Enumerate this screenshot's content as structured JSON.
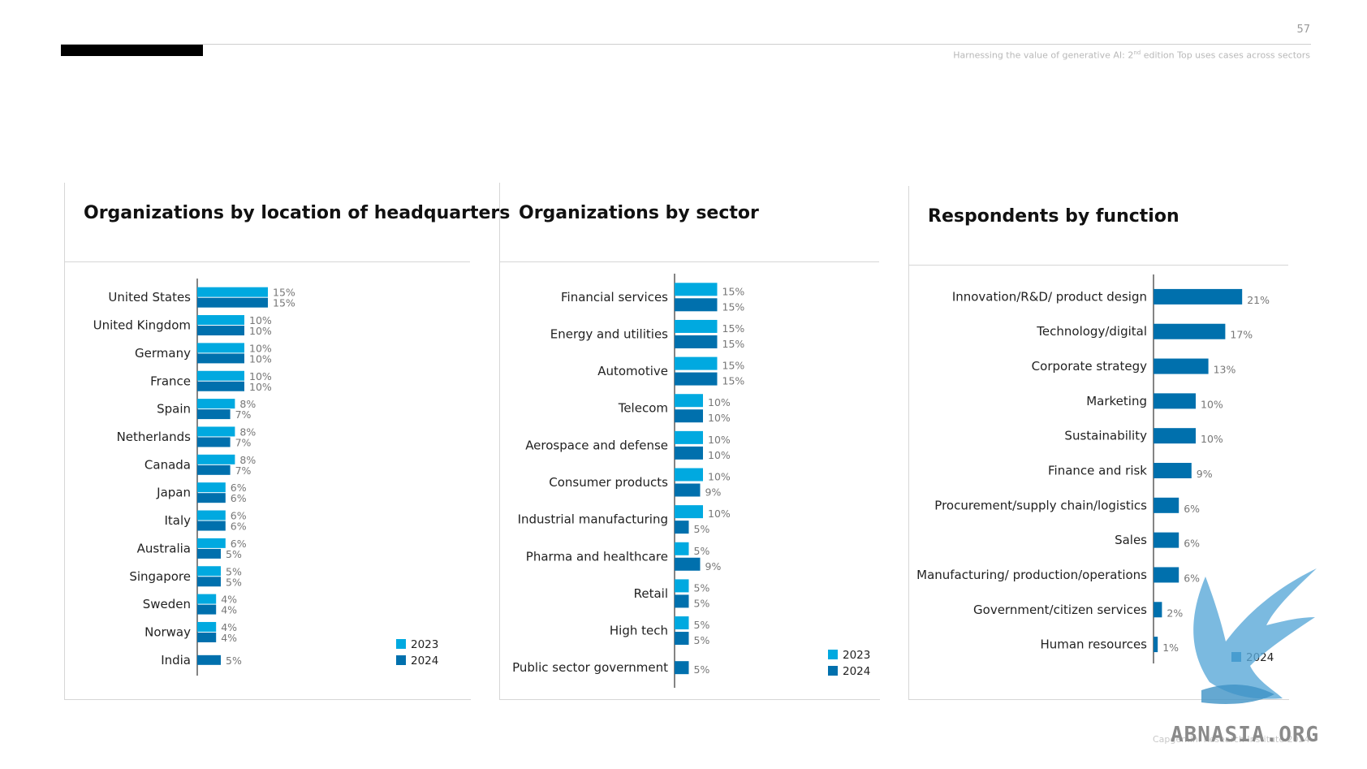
{
  "page": {
    "number": "57",
    "subtitle_pre": "Harnessing the value of generative AI: 2",
    "subtitle_sup": "nd",
    "subtitle_post": " edition Top uses cases across sectors",
    "footer": "Capgemini Research Institute 2024",
    "watermark": "ABNASIA.ORG"
  },
  "colors": {
    "y2023": "#00a9e0",
    "y2024": "#0070ad"
  },
  "chart_data": [
    {
      "type": "bar",
      "title": "Organizations by location of headquarters",
      "orientation": "horizontal",
      "categories": [
        "United States",
        "United Kingdom",
        "Germany",
        "France",
        "Spain",
        "Netherlands",
        "Canada",
        "Japan",
        "Italy",
        "Australia",
        "Singapore",
        "Sweden",
        "Norway",
        "India"
      ],
      "series": [
        {
          "name": "2023",
          "values": [
            15,
            10,
            10,
            10,
            8,
            8,
            8,
            6,
            6,
            6,
            5,
            4,
            4,
            null
          ]
        },
        {
          "name": "2024",
          "values": [
            15,
            10,
            10,
            10,
            7,
            7,
            7,
            6,
            6,
            5,
            5,
            4,
            4,
            5
          ]
        }
      ],
      "value_suffix": "%",
      "legend": [
        "2023",
        "2024"
      ],
      "legend_position": "bottom-right"
    },
    {
      "type": "bar",
      "title": "Organizations by sector",
      "orientation": "horizontal",
      "categories": [
        "Financial services",
        "Energy and utilities",
        "Automotive",
        "Telecom",
        "Aerospace and defense",
        "Consumer products",
        "Industrial manufacturing",
        "Pharma and healthcare",
        "Retail",
        "High tech",
        "Public sector government"
      ],
      "series": [
        {
          "name": "2023",
          "values": [
            15,
            15,
            15,
            10,
            10,
            10,
            10,
            5,
            5,
            5,
            null
          ]
        },
        {
          "name": "2024",
          "values": [
            15,
            15,
            15,
            10,
            10,
            9,
            5,
            9,
            5,
            5,
            5
          ]
        }
      ],
      "value_suffix": "%",
      "legend": [
        "2023",
        "2024"
      ],
      "legend_position": "bottom-right"
    },
    {
      "type": "bar",
      "title": "Respondents by function",
      "orientation": "horizontal",
      "categories": [
        "Innovation/R&D/ product design",
        "Technology/digital",
        "Corporate strategy",
        "Marketing",
        "Sustainability",
        "Finance and risk",
        "Procurement/supply chain/logistics",
        "Sales",
        "Manufacturing/ production/operations",
        "Government/citizen services",
        "Human resources"
      ],
      "series": [
        {
          "name": "2024",
          "values": [
            21,
            17,
            13,
            10,
            10,
            9,
            6,
            6,
            6,
            2,
            1
          ]
        }
      ],
      "value_suffix": "%",
      "legend": [
        "2024"
      ],
      "legend_position": "bottom-right"
    }
  ]
}
